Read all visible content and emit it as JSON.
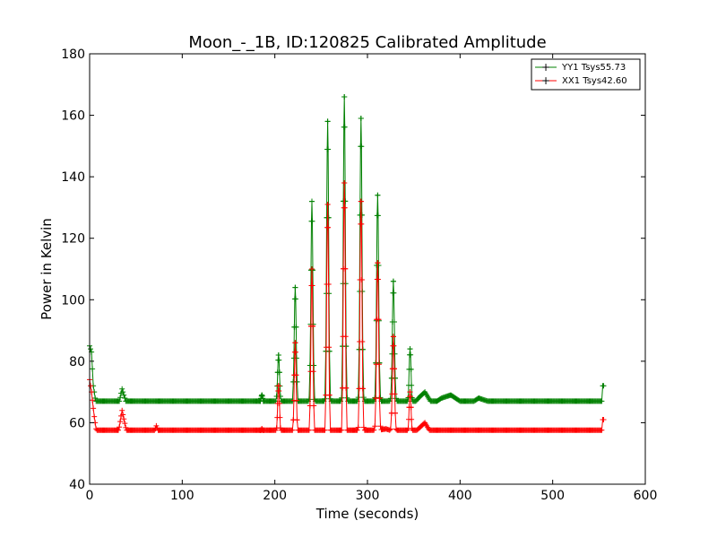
{
  "chart_data": {
    "type": "line",
    "title": "Moon_-_1B, ID:120825 Calibrated Amplitude",
    "xlabel": "Time (seconds)",
    "ylabel": "Power in Kelvin",
    "xlim": [
      0,
      600
    ],
    "ylim": [
      40,
      180
    ],
    "xticks": [
      0,
      100,
      200,
      300,
      400,
      500,
      600
    ],
    "yticks": [
      40,
      60,
      80,
      100,
      120,
      140,
      160,
      180
    ],
    "grid": false,
    "legend_position": "top-right",
    "marker": "+",
    "x_start": 0,
    "x_end": 555,
    "series": [
      {
        "name": "YY1 Tsys55.73",
        "color": "#008000",
        "baseline": [
          [
            0,
            85
          ],
          [
            2,
            83
          ],
          [
            4,
            72
          ],
          [
            8,
            64
          ],
          [
            15,
            63
          ],
          [
            25,
            63
          ],
          [
            30,
            64
          ],
          [
            35,
            71
          ],
          [
            40,
            66
          ],
          [
            45,
            63
          ],
          [
            55,
            63
          ],
          [
            65,
            64
          ],
          [
            70,
            66
          ],
          [
            75,
            64
          ],
          [
            80,
            63
          ],
          [
            100,
            63
          ],
          [
            108,
            64
          ],
          [
            115,
            63
          ],
          [
            130,
            63
          ],
          [
            140,
            64
          ],
          [
            150,
            65
          ],
          [
            160,
            63
          ],
          [
            170,
            65
          ],
          [
            180,
            66
          ],
          [
            200,
            65
          ],
          [
            210,
            66
          ],
          [
            230,
            66
          ],
          [
            250,
            66
          ],
          [
            265,
            65
          ],
          [
            280,
            66
          ],
          [
            300,
            66
          ],
          [
            320,
            67
          ],
          [
            340,
            67
          ],
          [
            345,
            64
          ],
          [
            355,
            68
          ],
          [
            362,
            70
          ],
          [
            370,
            66
          ],
          [
            380,
            68
          ],
          [
            390,
            69
          ],
          [
            400,
            67
          ],
          [
            405,
            65
          ],
          [
            420,
            68
          ],
          [
            430,
            67
          ],
          [
            440,
            66
          ],
          [
            450,
            64
          ],
          [
            460,
            67
          ],
          [
            470,
            66
          ],
          [
            480,
            67
          ],
          [
            490,
            65
          ],
          [
            500,
            66
          ],
          [
            510,
            66
          ],
          [
            520,
            64
          ],
          [
            530,
            67
          ],
          [
            540,
            65
          ],
          [
            550,
            64
          ],
          [
            553,
            63
          ],
          [
            554,
            72
          ]
        ],
        "peaks": [
          [
            186,
            69
          ],
          [
            204,
            82
          ],
          [
            222,
            104
          ],
          [
            240,
            132
          ],
          [
            257,
            158
          ],
          [
            275,
            166
          ],
          [
            293,
            159
          ],
          [
            311,
            134
          ],
          [
            328,
            106
          ],
          [
            346,
            84
          ]
        ]
      },
      {
        "name": "XX1 Tsys42.60",
        "color": "#ff0000",
        "baseline": [
          [
            0,
            74
          ],
          [
            2,
            70
          ],
          [
            5,
            62
          ],
          [
            8,
            56
          ],
          [
            15,
            55
          ],
          [
            25,
            54
          ],
          [
            30,
            55
          ],
          [
            35,
            64
          ],
          [
            40,
            57
          ],
          [
            45,
            54
          ],
          [
            60,
            54
          ],
          [
            68,
            55
          ],
          [
            72,
            59
          ],
          [
            76,
            56
          ],
          [
            80,
            54
          ],
          [
            100,
            54
          ],
          [
            108,
            56
          ],
          [
            115,
            54
          ],
          [
            130,
            54
          ],
          [
            140,
            55
          ],
          [
            155,
            54
          ],
          [
            170,
            55
          ],
          [
            180,
            55
          ],
          [
            190,
            54
          ],
          [
            200,
            55
          ],
          [
            210,
            55
          ],
          [
            230,
            55
          ],
          [
            250,
            55
          ],
          [
            260,
            54
          ],
          [
            280,
            56
          ],
          [
            300,
            57
          ],
          [
            320,
            58
          ],
          [
            340,
            56
          ],
          [
            345,
            55
          ],
          [
            355,
            58
          ],
          [
            362,
            60
          ],
          [
            370,
            56
          ],
          [
            380,
            57
          ],
          [
            390,
            57
          ],
          [
            400,
            56
          ],
          [
            405,
            55
          ],
          [
            420,
            56
          ],
          [
            430,
            55
          ],
          [
            440,
            56
          ],
          [
            450,
            54
          ],
          [
            460,
            55
          ],
          [
            470,
            55
          ],
          [
            480,
            55
          ],
          [
            490,
            54
          ],
          [
            500,
            55
          ],
          [
            520,
            54
          ],
          [
            530,
            55
          ],
          [
            540,
            55
          ],
          [
            550,
            54
          ],
          [
            553,
            53
          ],
          [
            554,
            61
          ]
        ],
        "peaks": [
          [
            186,
            58
          ],
          [
            204,
            72
          ],
          [
            222,
            86
          ],
          [
            240,
            110
          ],
          [
            257,
            131
          ],
          [
            275,
            138
          ],
          [
            293,
            132
          ],
          [
            311,
            112
          ],
          [
            328,
            88
          ],
          [
            346,
            70
          ]
        ]
      }
    ]
  }
}
